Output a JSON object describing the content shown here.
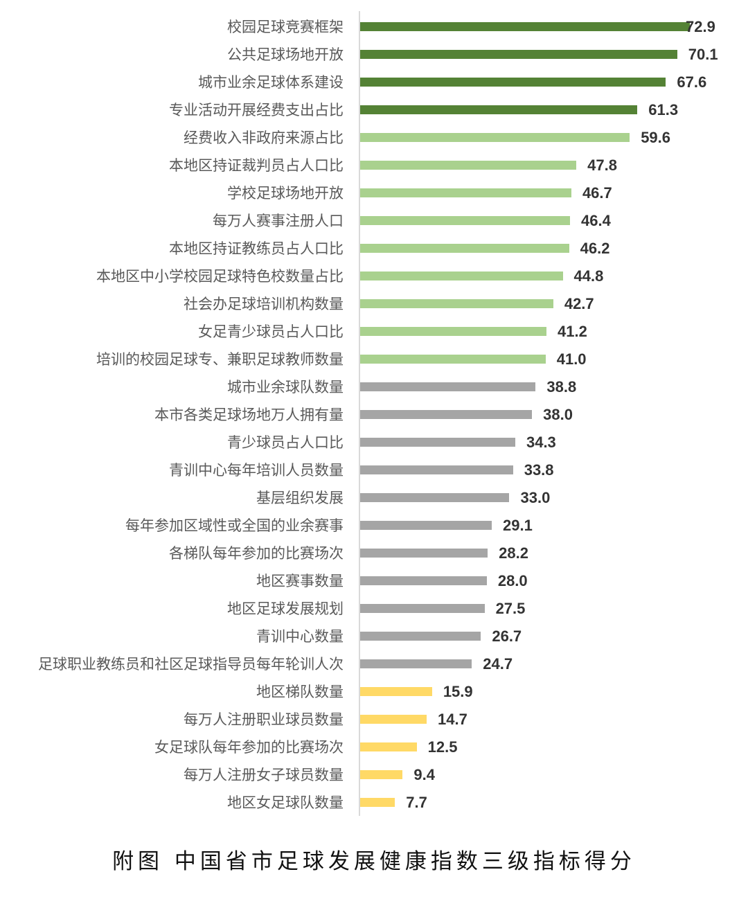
{
  "chart_data": {
    "type": "bar",
    "orientation": "horizontal",
    "title": "附图 中国省市足球发展健康指数三级指标得分",
    "xlabel": "",
    "ylabel": "",
    "xlim": [
      0,
      80
    ],
    "grid": false,
    "legend": null,
    "categories": [
      "校园足球竞赛框架",
      "公共足球场地开放",
      "城市业余足球体系建设",
      "专业活动开展经费支出占比",
      "经费收入非政府来源占比",
      "本地区持证裁判员占人口比",
      "学校足球场地开放",
      "每万人赛事注册人口",
      "本地区持证教练员占人口比",
      "本地区中小学校园足球特色校数量占比",
      "社会办足球培训机构数量",
      "女足青少球员占人口比",
      "培训的校园足球专、兼职足球教师数量",
      "城市业余球队数量",
      "本市各类足球场地万人拥有量",
      "青少球员占人口比",
      "青训中心每年培训人员数量",
      "基层组织发展",
      "每年参加区域性或全国的业余赛事",
      "各梯队每年参加的比赛场次",
      "地区赛事数量",
      "地区足球发展规划",
      "青训中心数量",
      "足球职业教练员和社区足球指导员每年轮训人次",
      "地区梯队数量",
      "每万人注册职业球员数量",
      "女足球队每年参加的比赛场次",
      "每万人注册女子球员数量",
      "地区女足球队数量"
    ],
    "values": [
      72.9,
      70.1,
      67.6,
      61.3,
      59.6,
      47.8,
      46.7,
      46.4,
      46.2,
      44.8,
      42.7,
      41.2,
      41.0,
      38.8,
      38.0,
      34.3,
      33.8,
      33.0,
      29.1,
      28.2,
      28.0,
      27.5,
      26.7,
      24.7,
      15.9,
      14.7,
      12.5,
      9.4,
      7.7
    ],
    "value_labels": [
      "72.9",
      "70.1",
      "67.6",
      "61.3",
      "59.6",
      "47.8",
      "46.7",
      "46.4",
      "46.2",
      "44.8",
      "42.7",
      "41.2",
      "41.0",
      "38.8",
      "38.0",
      "34.3",
      "33.8",
      "33.0",
      "29.1",
      "28.2",
      "28.0",
      "27.5",
      "26.7",
      "24.7",
      "15.9",
      "14.7",
      "12.5",
      "9.4",
      "7.7"
    ],
    "color_groups": [
      "dark",
      "dark",
      "dark",
      "dark",
      "light",
      "light",
      "light",
      "light",
      "light",
      "light",
      "light",
      "light",
      "light",
      "gray",
      "gray",
      "gray",
      "gray",
      "gray",
      "gray",
      "gray",
      "gray",
      "gray",
      "gray",
      "gray",
      "yellow",
      "yellow",
      "yellow",
      "yellow",
      "yellow"
    ],
    "colors": {
      "dark": "#548235",
      "light": "#a9d18e",
      "gray": "#a5a5a5",
      "yellow": "#ffd966"
    }
  },
  "caption": "附图  中国省市足球发展健康指数三级指标得分"
}
